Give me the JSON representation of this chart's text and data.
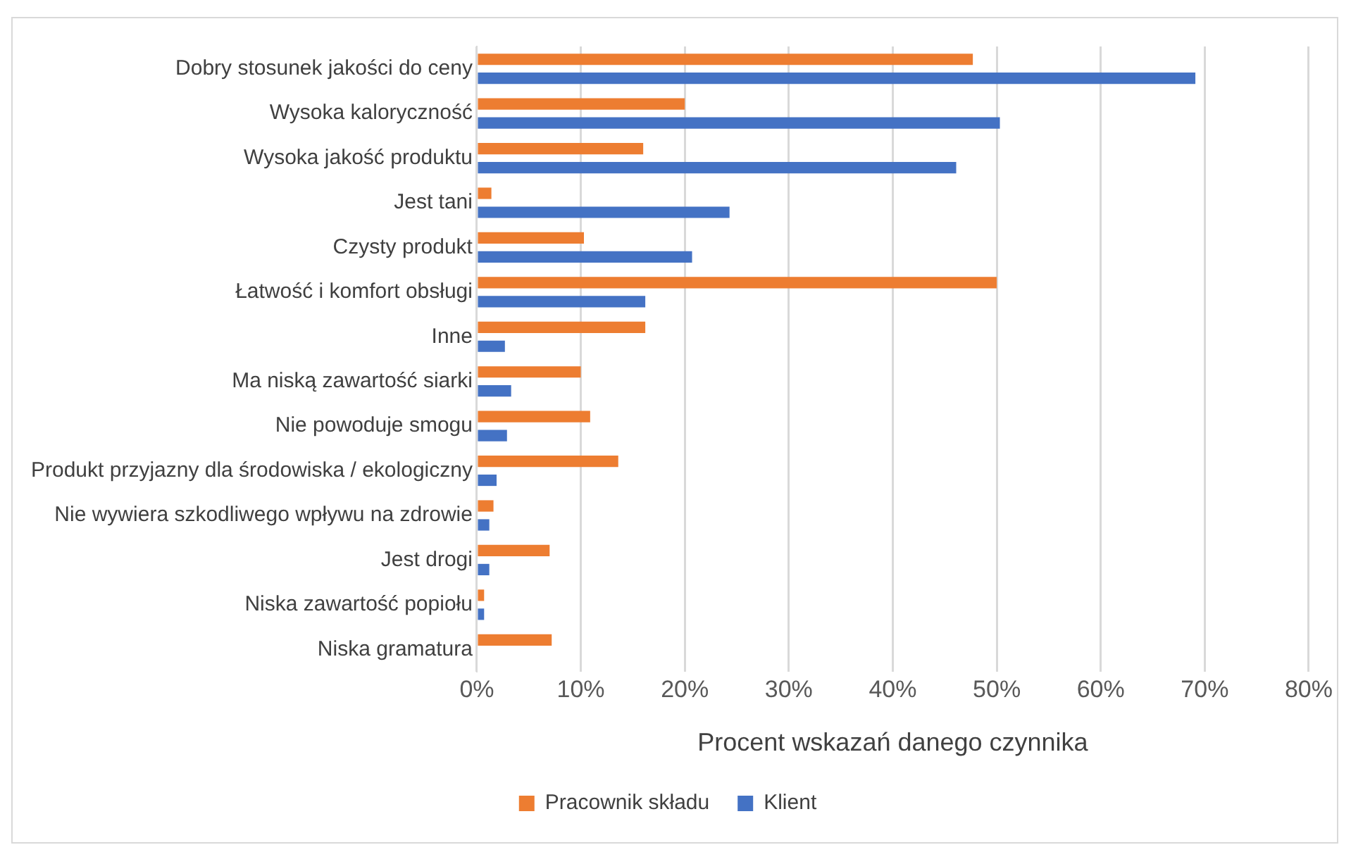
{
  "chart_data": {
    "type": "bar",
    "orientation": "horizontal",
    "xlabel": "Procent wskazań danego czynnika",
    "categories": [
      "Dobry stosunek jakości do ceny",
      "Wysoka kaloryczność",
      "Wysoka jakość produktu",
      "Jest tani",
      "Czysty produkt",
      "Łatwość i komfort obsługi",
      "Inne",
      "Ma niską zawartość siarki",
      "Nie powoduje smogu",
      "Produkt przyjazny dla środowiska / ekologiczny",
      "Nie wywiera szkodliwego wpływu na zdrowie",
      "Jest drogi",
      "Niska zawartość popiołu",
      "Niska gramatura"
    ],
    "series": [
      {
        "name": "Pracownik składu",
        "color": "#ed7d31",
        "values": [
          47.7,
          20,
          16,
          1.4,
          10.3,
          50,
          16.2,
          10,
          10.9,
          13.6,
          1.6,
          7,
          0.7,
          7.2
        ]
      },
      {
        "name": "Klient",
        "color": "#4472c4",
        "values": [
          69.1,
          50.3,
          46.1,
          24.3,
          20.7,
          16.2,
          2.7,
          3.3,
          2.9,
          1.9,
          1.2,
          1.2,
          0.7,
          null
        ]
      }
    ],
    "xlim": [
      0,
      80
    ],
    "xticks": [
      {
        "value": 0,
        "label": "0%"
      },
      {
        "value": 10,
        "label": "10%"
      },
      {
        "value": 20,
        "label": "20%"
      },
      {
        "value": 30,
        "label": "30%"
      },
      {
        "value": 40,
        "label": "40%"
      },
      {
        "value": 50,
        "label": "50%"
      },
      {
        "value": 60,
        "label": "60%"
      },
      {
        "value": 70,
        "label": "70%"
      },
      {
        "value": 80,
        "label": "80%"
      }
    ],
    "grid": "x",
    "legend": "bottom"
  }
}
